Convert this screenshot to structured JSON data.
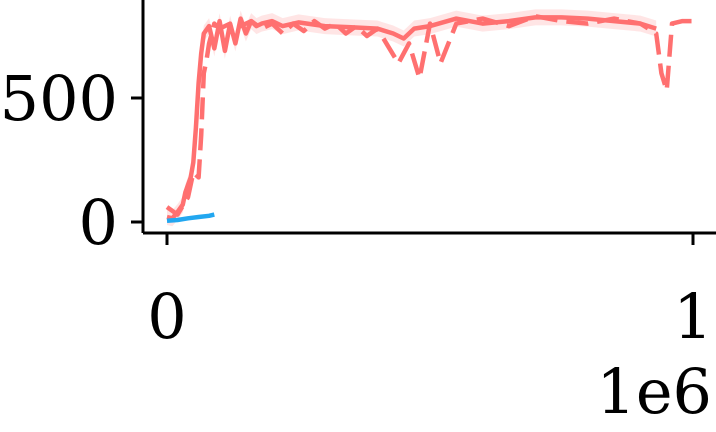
{
  "chart_data": {
    "type": "line",
    "title": "",
    "xlabel": "",
    "ylabel": "",
    "x_scale_label": "1e6",
    "x_ticks": [
      {
        "value": 0,
        "label": "0"
      },
      {
        "value": 1,
        "label": "1"
      }
    ],
    "y_ticks": [
      {
        "value": 0,
        "label": "0"
      },
      {
        "value": 500,
        "label": "500"
      }
    ],
    "xlim": [
      -0.04,
      1.04
    ],
    "ylim": [
      -40,
      870
    ],
    "grid": false,
    "legend": "none",
    "series": [
      {
        "color": "#ff7070",
        "style": "solid",
        "band": true,
        "x": [
          0.0,
          0.01,
          0.02,
          0.03,
          0.035,
          0.045,
          0.05,
          0.055,
          0.06,
          0.065,
          0.07,
          0.08,
          0.09,
          0.1,
          0.11,
          0.12,
          0.13,
          0.14,
          0.15,
          0.16,
          0.17,
          0.18,
          0.2,
          0.22,
          0.25,
          0.3,
          0.35,
          0.4,
          0.43,
          0.45,
          0.47,
          0.5,
          0.55,
          0.6,
          0.65,
          0.7,
          0.75,
          0.8,
          0.85,
          0.9,
          0.93
        ],
        "values": [
          20,
          15,
          40,
          70,
          120,
          180,
          240,
          380,
          560,
          680,
          760,
          790,
          700,
          810,
          690,
          800,
          720,
          820,
          760,
          810,
          790,
          800,
          810,
          790,
          805,
          790,
          785,
          780,
          760,
          740,
          780,
          790,
          820,
          800,
          810,
          825,
          825,
          820,
          810,
          800,
          780
        ]
      },
      {
        "color": "#ff7070",
        "style": "dashed",
        "band": false,
        "x": [
          0.0,
          0.02,
          0.04,
          0.05,
          0.06,
          0.065,
          0.07,
          0.075,
          0.08,
          0.09,
          0.1,
          0.12,
          0.14,
          0.16,
          0.18,
          0.2,
          0.22,
          0.24,
          0.26,
          0.28,
          0.3,
          0.32,
          0.34,
          0.36,
          0.38,
          0.4,
          0.42,
          0.44,
          0.46,
          0.48,
          0.5,
          0.52,
          0.55,
          0.6,
          0.65,
          0.7,
          0.75,
          0.8,
          0.85,
          0.9,
          0.93,
          0.94,
          0.95,
          0.96,
          0.98,
          1.0
        ],
        "values": [
          60,
          30,
          100,
          200,
          180,
          350,
          600,
          650,
          720,
          800,
          780,
          800,
          790,
          810,
          780,
          800,
          760,
          800,
          770,
          810,
          780,
          800,
          760,
          790,
          750,
          780,
          710,
          640,
          720,
          580,
          800,
          640,
          800,
          820,
          790,
          830,
          810,
          800,
          820,
          800,
          760,
          600,
          530,
          800,
          810,
          810
        ]
      },
      {
        "color": "#22a7f0",
        "style": "solid",
        "band": false,
        "x": [
          0.0,
          0.02,
          0.04,
          0.06,
          0.08,
          0.09
        ],
        "values": [
          5,
          8,
          15,
          20,
          25,
          30
        ]
      }
    ]
  }
}
